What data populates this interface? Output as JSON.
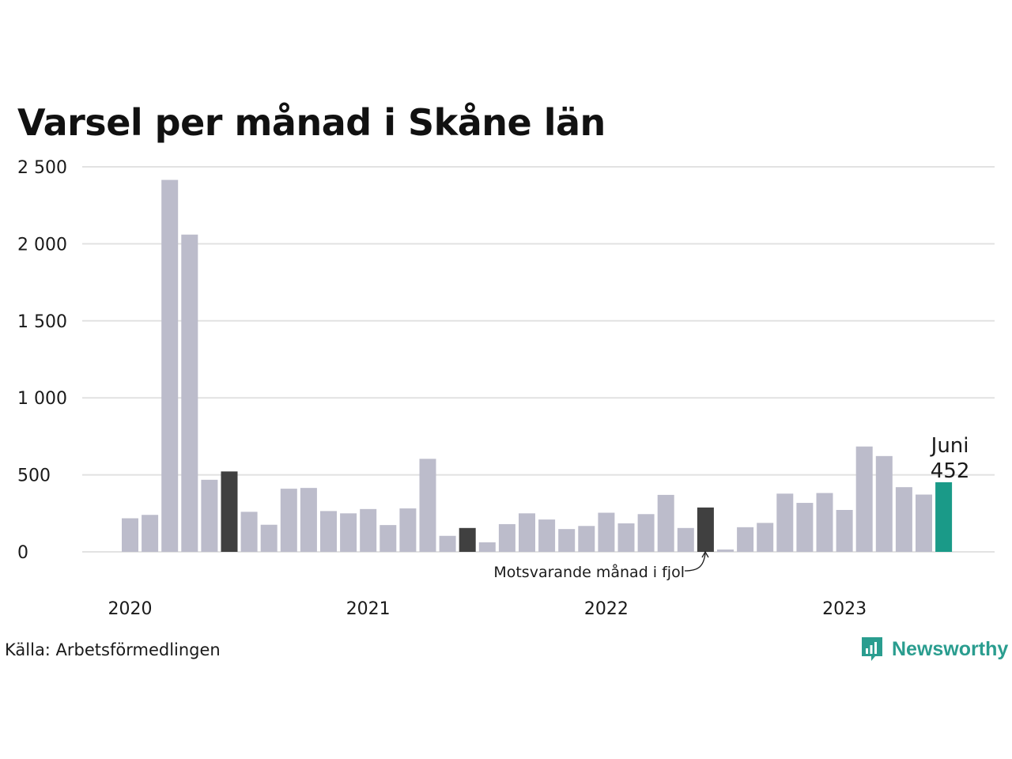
{
  "title": "Varsel per månad i Skåne län",
  "source": "Källa: Arbetsförmedlingen",
  "brand": {
    "name": "Newsworthy",
    "icon": "newsworthy-logo-icon",
    "color": "#2a9d8f"
  },
  "colors": {
    "default": "#bcbccb",
    "highlight": "#404040",
    "current": "#1a9a88",
    "grid": "#e2e2e2"
  },
  "annotation": "Motsvarande månad i fjol",
  "callout": {
    "month": "Juni",
    "value": "452"
  },
  "chart_data": {
    "type": "bar",
    "ylim": [
      0,
      2500
    ],
    "yticks": [
      0,
      500,
      1000,
      1500,
      2000,
      2500
    ],
    "ytick_labels": [
      "0",
      "500",
      "1 000",
      "1 500",
      "2 000",
      "2 500"
    ],
    "year_labels": [
      "2020",
      "2021",
      "2022",
      "2023"
    ],
    "year_label_index": [
      0,
      12,
      24,
      36
    ],
    "categories": [
      "2020-01",
      "2020-02",
      "2020-03",
      "2020-04",
      "2020-05",
      "2020-06",
      "2020-07",
      "2020-08",
      "2020-09",
      "2020-10",
      "2020-11",
      "2020-12",
      "2021-01",
      "2021-02",
      "2021-03",
      "2021-04",
      "2021-05",
      "2021-06",
      "2021-07",
      "2021-08",
      "2021-09",
      "2021-10",
      "2021-11",
      "2021-12",
      "2022-01",
      "2022-02",
      "2022-03",
      "2022-04",
      "2022-05",
      "2022-06",
      "2022-07",
      "2022-08",
      "2022-09",
      "2022-10",
      "2022-11",
      "2022-12",
      "2023-01",
      "2023-02",
      "2023-03",
      "2023-04",
      "2023-05",
      "2023-06"
    ],
    "values": [
      218,
      240,
      2415,
      2060,
      468,
      522,
      260,
      176,
      410,
      415,
      265,
      250,
      278,
      174,
      282,
      604,
      104,
      155,
      62,
      180,
      250,
      210,
      148,
      168,
      254,
      185,
      245,
      370,
      155,
      288,
      15,
      160,
      188,
      378,
      318,
      382,
      272,
      684,
      622,
      420,
      372,
      452
    ],
    "highlight_index": [
      5,
      17,
      29
    ],
    "current_index": 41
  }
}
